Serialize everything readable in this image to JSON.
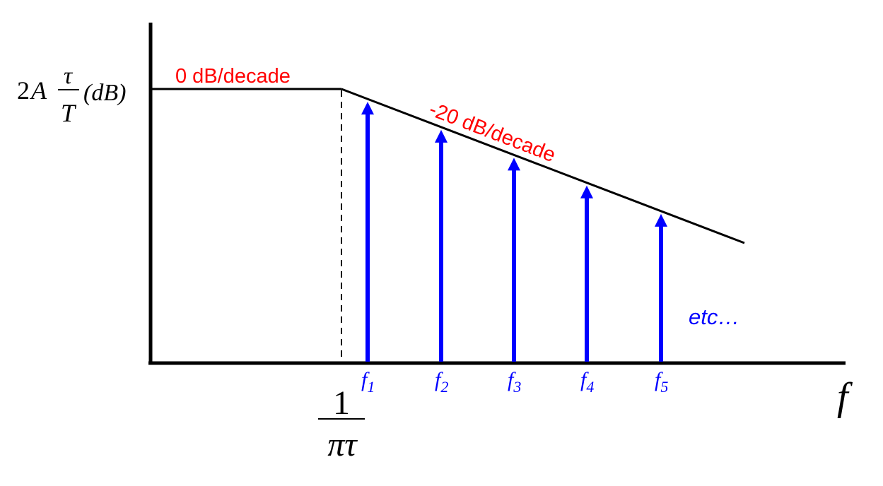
{
  "y_label": {
    "coefficient": "2",
    "amplitude": "A",
    "numerator": "τ",
    "denominator": "T",
    "suffix": "(dB)"
  },
  "corner_label": {
    "numerator": "1",
    "denominator": "πτ"
  },
  "x_axis_label": "f",
  "slope_labels": {
    "flat": "0 dB/decade",
    "falling": "-20 dB/decade"
  },
  "harmonics": [
    {
      "base": "f",
      "sub": "1"
    },
    {
      "base": "f",
      "sub": "2"
    },
    {
      "base": "f",
      "sub": "3"
    },
    {
      "base": "f",
      "sub": "4"
    },
    {
      "base": "f",
      "sub": "5"
    }
  ],
  "continuation_label": "etc…",
  "colors": {
    "axis": "#000000",
    "envelope": "#000000",
    "slope_text": "#ff0000",
    "harmonic": "#0000ff"
  }
}
